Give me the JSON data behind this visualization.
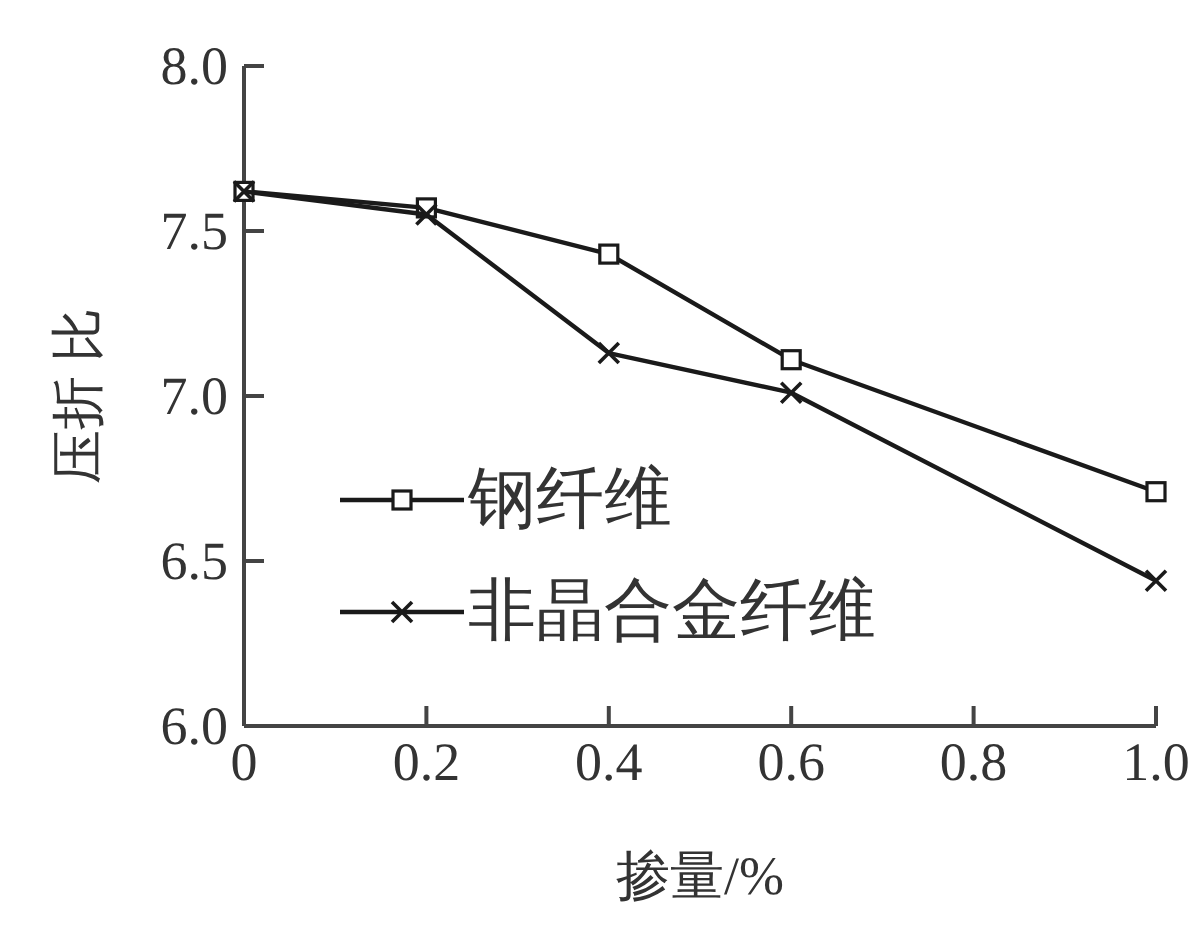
{
  "chart_data": {
    "type": "line",
    "xlabel": "掺量/%",
    "ylabel": "压折 比",
    "x": [
      0,
      0.2,
      0.4,
      0.6,
      1.0
    ],
    "series": [
      {
        "name": "钢纤维",
        "color": "#1a1a1a",
        "marker": "square",
        "values": [
          7.62,
          7.57,
          7.43,
          7.11,
          6.71
        ]
      },
      {
        "name": "非晶合金纤维",
        "color": "#1a1a1a",
        "marker": "cross",
        "values": [
          7.62,
          7.55,
          7.13,
          7.01,
          6.44
        ]
      }
    ],
    "xlim": [
      0,
      1.0
    ],
    "xticks": [
      0,
      0.2,
      0.4,
      0.6,
      0.8,
      {
        "value": 1.0,
        "label": "1.0"
      }
    ],
    "ylim": [
      6.0,
      8.0
    ],
    "yticks": [
      {
        "value": 6,
        "label": "6.0"
      },
      6.5,
      {
        "value": 7,
        "label": "7.0"
      },
      7.5,
      {
        "value": 8,
        "label": "8.0"
      }
    ],
    "grid": false,
    "legend": "bottom left",
    "line_style": "solid"
  }
}
